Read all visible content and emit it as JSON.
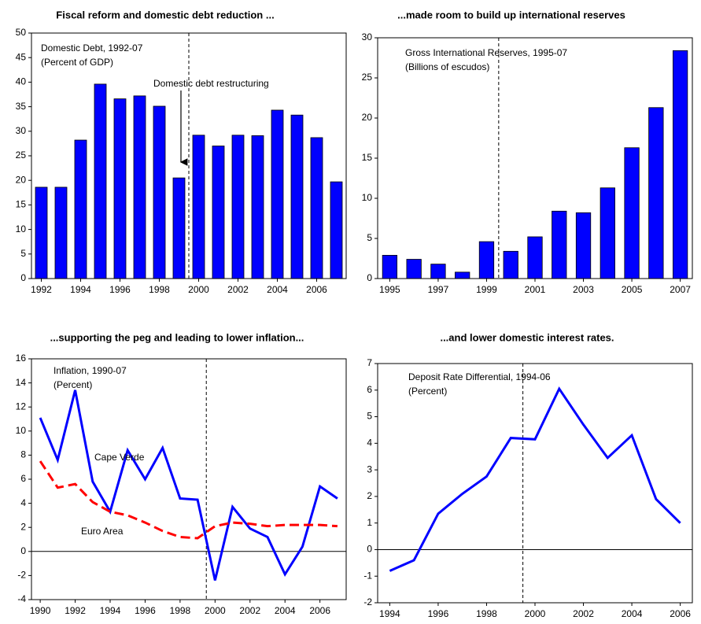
{
  "chart_data": [
    {
      "type": "bar",
      "title": "Fiscal reform and domestic debt reduction ...",
      "annotations": [
        "Domestic Debt, 1992-07",
        "(Percent of GDP)",
        "Domestic debt restructuring"
      ],
      "x": [
        1992,
        1993,
        1994,
        1995,
        1996,
        1997,
        1998,
        1999,
        2000,
        2001,
        2002,
        2003,
        2004,
        2005,
        2006,
        2007
      ],
      "series": [
        {
          "color": "#0000ff",
          "values": [
            18.6,
            18.6,
            28.2,
            39.6,
            36.6,
            37.2,
            35.1,
            20.5,
            29.2,
            27.0,
            29.2,
            29.1,
            34.3,
            33.3,
            28.7,
            19.7
          ]
        }
      ],
      "xlim": [
        1991.5,
        2007.5
      ],
      "xticks": [
        1992,
        1994,
        1996,
        1998,
        2000,
        2002,
        2004,
        2006
      ],
      "ylim": [
        0,
        50
      ],
      "yticks": [
        0,
        5,
        10,
        15,
        20,
        25,
        30,
        35,
        40,
        45,
        50
      ],
      "vline": 1999.5
    },
    {
      "type": "bar",
      "title": "...made room to build up international reserves",
      "annotations": [
        "Gross International Reserves, 1995-07",
        "(Billions of escudos)"
      ],
      "x": [
        1995,
        1996,
        1997,
        1998,
        1999,
        2000,
        2001,
        2002,
        2003,
        2004,
        2005,
        2006,
        2007
      ],
      "series": [
        {
          "color": "#0000ff",
          "values": [
            2.9,
            2.4,
            1.8,
            0.8,
            4.6,
            3.4,
            5.2,
            8.4,
            8.2,
            11.3,
            16.3,
            21.3,
            28.4
          ]
        }
      ],
      "xlim": [
        1994.5,
        2007.5
      ],
      "xticks": [
        1995,
        1997,
        1999,
        2001,
        2003,
        2005,
        2007
      ],
      "ylim": [
        0,
        30
      ],
      "yticks": [
        0,
        5,
        10,
        15,
        20,
        25,
        30
      ],
      "vline": 1999.5
    },
    {
      "type": "line",
      "title": "...supporting the peg and leading to lower inflation...",
      "annotations": [
        "Inflation, 1990-07",
        "(Percent)"
      ],
      "x": [
        1990,
        1991,
        1992,
        1993,
        1994,
        1995,
        1996,
        1997,
        1998,
        1999,
        2000,
        2001,
        2002,
        2003,
        2004,
        2005,
        2006,
        2007
      ],
      "series": [
        {
          "name": "Cape Verde",
          "color": "#0000ff",
          "values": [
            11.1,
            7.6,
            13.4,
            5.8,
            3.3,
            8.4,
            6.0,
            8.6,
            4.4,
            4.3,
            -2.4,
            3.7,
            1.9,
            1.2,
            -1.9,
            0.4,
            5.4,
            4.4
          ]
        },
        {
          "name": "Euro Area",
          "color": "#ff0000",
          "dashed": true,
          "values": [
            7.5,
            5.3,
            5.6,
            4.1,
            3.3,
            3.0,
            2.4,
            1.7,
            1.2,
            1.1,
            2.1,
            2.4,
            2.3,
            2.1,
            2.2,
            2.2,
            2.2,
            2.1
          ]
        }
      ],
      "xlim": [
        1989.5,
        2007.5
      ],
      "xticks": [
        1990,
        1992,
        1994,
        1996,
        1998,
        2000,
        2002,
        2004,
        2006
      ],
      "ylim": [
        -4,
        16
      ],
      "yticks": [
        -4,
        -2,
        0,
        2,
        4,
        6,
        8,
        10,
        12,
        14,
        16
      ],
      "vline": 1999.5
    },
    {
      "type": "line",
      "title": "...and lower domestic interest rates.",
      "annotations": [
        "Deposit Rate Differential, 1994-06",
        "(Percent)"
      ],
      "x": [
        1994,
        1995,
        1996,
        1997,
        1998,
        1999,
        2000,
        2001,
        2002,
        2003,
        2004,
        2005,
        2006
      ],
      "series": [
        {
          "color": "#0000ff",
          "values": [
            -0.8,
            -0.4,
            1.35,
            2.1,
            2.75,
            4.2,
            4.15,
            6.05,
            4.7,
            3.45,
            4.3,
            1.9,
            1.0
          ]
        }
      ],
      "xlim": [
        1993.5,
        2006.5
      ],
      "xticks": [
        1994,
        1996,
        1998,
        2000,
        2002,
        2004,
        2006
      ],
      "ylim": [
        -2,
        7
      ],
      "yticks": [
        -2,
        -1,
        0,
        1,
        2,
        3,
        4,
        5,
        6,
        7
      ],
      "vline": 1999.5
    }
  ]
}
